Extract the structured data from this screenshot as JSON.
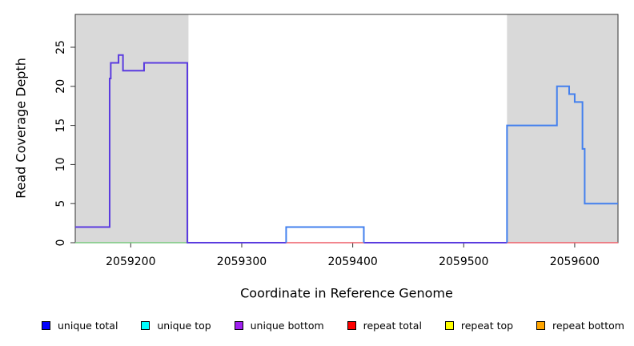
{
  "chart_data": {
    "type": "line",
    "title": "",
    "xlabel": "Coordinate in Reference Genome",
    "ylabel": "Read Coverage Depth",
    "xlim": [
      2059150,
      2059639
    ],
    "ylim": [
      0,
      29.2
    ],
    "x_ticks": [
      2059200,
      2059300,
      2059400,
      2059500,
      2059600
    ],
    "y_ticks": [
      0,
      5,
      10,
      15,
      20,
      25
    ],
    "grid": false,
    "legend_position": "bottom",
    "frame_color": "#333333",
    "shaded_regions": [
      {
        "x0": 2059150,
        "x1": 2059252,
        "color": "#d9d9d9"
      },
      {
        "x0": 2059539,
        "x1": 2059639,
        "color": "#d9d9d9"
      }
    ],
    "series": [
      {
        "name": "baseline-green-left",
        "color": "#79c87f",
        "width": 1.6,
        "points": [
          [
            2059150,
            0
          ],
          [
            2059252,
            0
          ]
        ]
      },
      {
        "name": "baseline-red-middle",
        "color": "#ee5f68",
        "width": 1.6,
        "points": [
          [
            2059340,
            0
          ],
          [
            2059410,
            0
          ]
        ]
      },
      {
        "name": "baseline-red-right",
        "color": "#ee5f68",
        "width": 1.6,
        "points": [
          [
            2059539,
            0
          ],
          [
            2059639,
            0
          ]
        ]
      },
      {
        "name": "unique-bottom-left-block",
        "color": "#5a3bdf",
        "width": 2,
        "points": [
          [
            2059150,
            2
          ],
          [
            2059181,
            2
          ],
          [
            2059181,
            21
          ],
          [
            2059182,
            21
          ],
          [
            2059182,
            23
          ],
          [
            2059189,
            23
          ],
          [
            2059189,
            24
          ],
          [
            2059193,
            24
          ],
          [
            2059193,
            22
          ],
          [
            2059212,
            22
          ],
          [
            2059212,
            23
          ],
          [
            2059251,
            23
          ],
          [
            2059251,
            0
          ],
          [
            2059340,
            0
          ]
        ]
      },
      {
        "name": "unique-bottom-zero-segment",
        "color": "#5a3bdf",
        "width": 2,
        "points": [
          [
            2059410,
            0
          ],
          [
            2059539,
            0
          ]
        ]
      },
      {
        "name": "unique-total-middle-bump",
        "color": "#4380ee",
        "width": 2,
        "points": [
          [
            2059340,
            0
          ],
          [
            2059340,
            2
          ],
          [
            2059410,
            2
          ],
          [
            2059410,
            0
          ]
        ]
      },
      {
        "name": "unique-total-right-block",
        "color": "#4380ee",
        "width": 2,
        "points": [
          [
            2059539,
            0
          ],
          [
            2059539,
            15
          ],
          [
            2059584,
            15
          ],
          [
            2059584,
            20
          ],
          [
            2059595,
            20
          ],
          [
            2059595,
            19
          ],
          [
            2059600,
            19
          ],
          [
            2059600,
            18
          ],
          [
            2059607,
            18
          ],
          [
            2059607,
            12
          ],
          [
            2059609,
            12
          ],
          [
            2059609,
            5
          ],
          [
            2059639,
            5
          ]
        ]
      }
    ],
    "legend": [
      {
        "label": "unique total",
        "color": "#0000ff"
      },
      {
        "label": "unique top",
        "color": "#00ffff"
      },
      {
        "label": "unique bottom",
        "color": "#a020f0"
      },
      {
        "label": "repeat total",
        "color": "#ff0000"
      },
      {
        "label": "repeat top",
        "color": "#ffff00"
      },
      {
        "label": "repeat bottom",
        "color": "#ffa500"
      }
    ]
  }
}
